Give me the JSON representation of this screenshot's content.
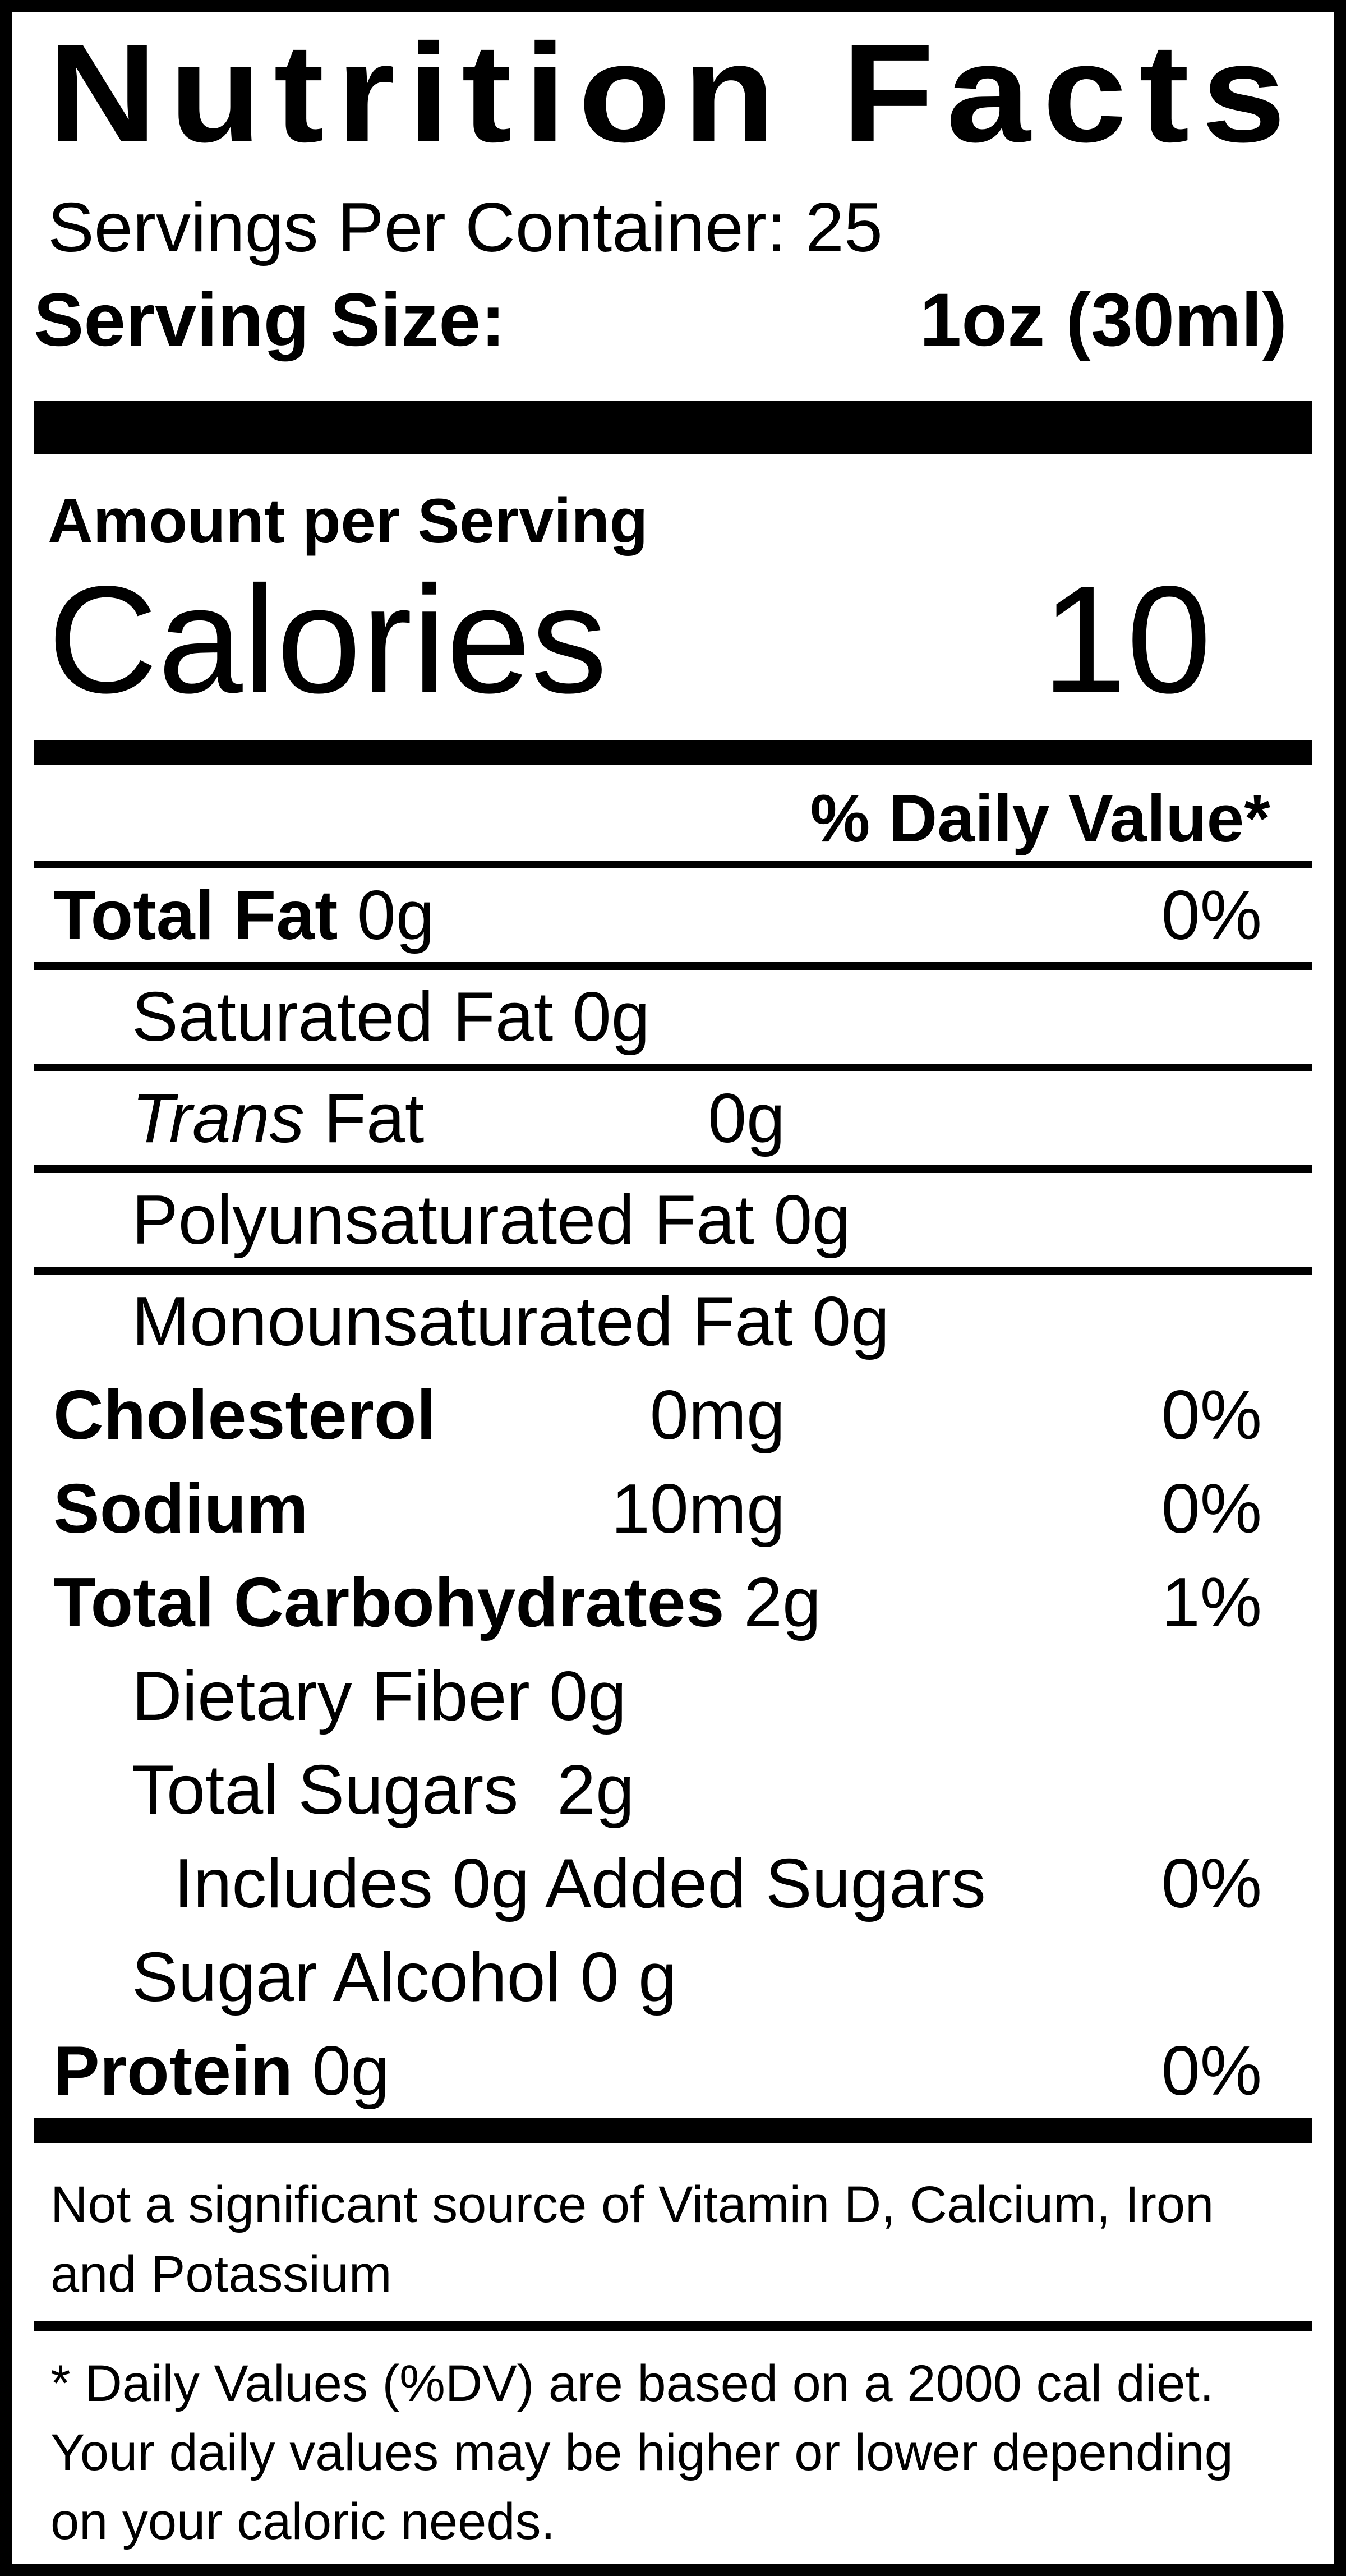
{
  "label": {
    "title": "Nutrition Facts",
    "servings_per_container": "Servings Per Container: 25",
    "serving_size_label": "Serving Size:",
    "serving_size_value": "1oz (30ml)",
    "amount_per_serving": "Amount per Serving",
    "calories_label": "Calories",
    "calories_value": "10",
    "daily_value_header": "% Daily Value*",
    "rows": [
      {
        "indent": 0,
        "bold": "Total Fat",
        "regular": " 0g",
        "percent": "0%",
        "rule_after": true
      },
      {
        "indent": 1,
        "regular": "Saturated Fat 0g",
        "rule_after": true
      },
      {
        "indent": 1,
        "italic": "Trans",
        "regular": " Fat",
        "amount": "0g",
        "rule_after": true
      },
      {
        "indent": 1,
        "regular": "Polyunsaturated Fat 0g",
        "rule_after": true
      },
      {
        "indent": 1,
        "regular": "Monounsaturated Fat 0g",
        "rule_after": false
      },
      {
        "indent": 0,
        "bold": "Cholesterol",
        "amount": "0mg",
        "percent": "0%",
        "rule_after": false
      },
      {
        "indent": 0,
        "bold": "Sodium",
        "amount": "10mg",
        "percent": "0%",
        "rule_after": false
      },
      {
        "indent": 0,
        "bold": "Total Carbohydrates",
        "regular": " 2g",
        "percent": "1%",
        "rule_after": false
      },
      {
        "indent": 1,
        "regular": "Dietary Fiber 0g",
        "rule_after": false
      },
      {
        "indent": 1,
        "regular": "Total Sugars  2g",
        "rule_after": false
      },
      {
        "indent": 2,
        "regular": "Includes 0g Added Sugars",
        "percent": "0%",
        "rule_after": false
      },
      {
        "indent": 1,
        "regular": "Sugar Alcohol 0 g",
        "rule_after": false
      },
      {
        "indent": 0,
        "bold": "Protein",
        "regular": " 0g",
        "percent": "0%",
        "rule_after": false
      }
    ],
    "not_significant_note": "Not a significant source of Vitamin D, Calcium, Iron and Potassium",
    "daily_value_footnote": "* Daily Values (%DV) are based on a 2000 cal diet. Your daily values may be higher or lower depending on your caloric needs.",
    "colors": {
      "ink": "#000000",
      "paper": "#ffffff"
    }
  }
}
